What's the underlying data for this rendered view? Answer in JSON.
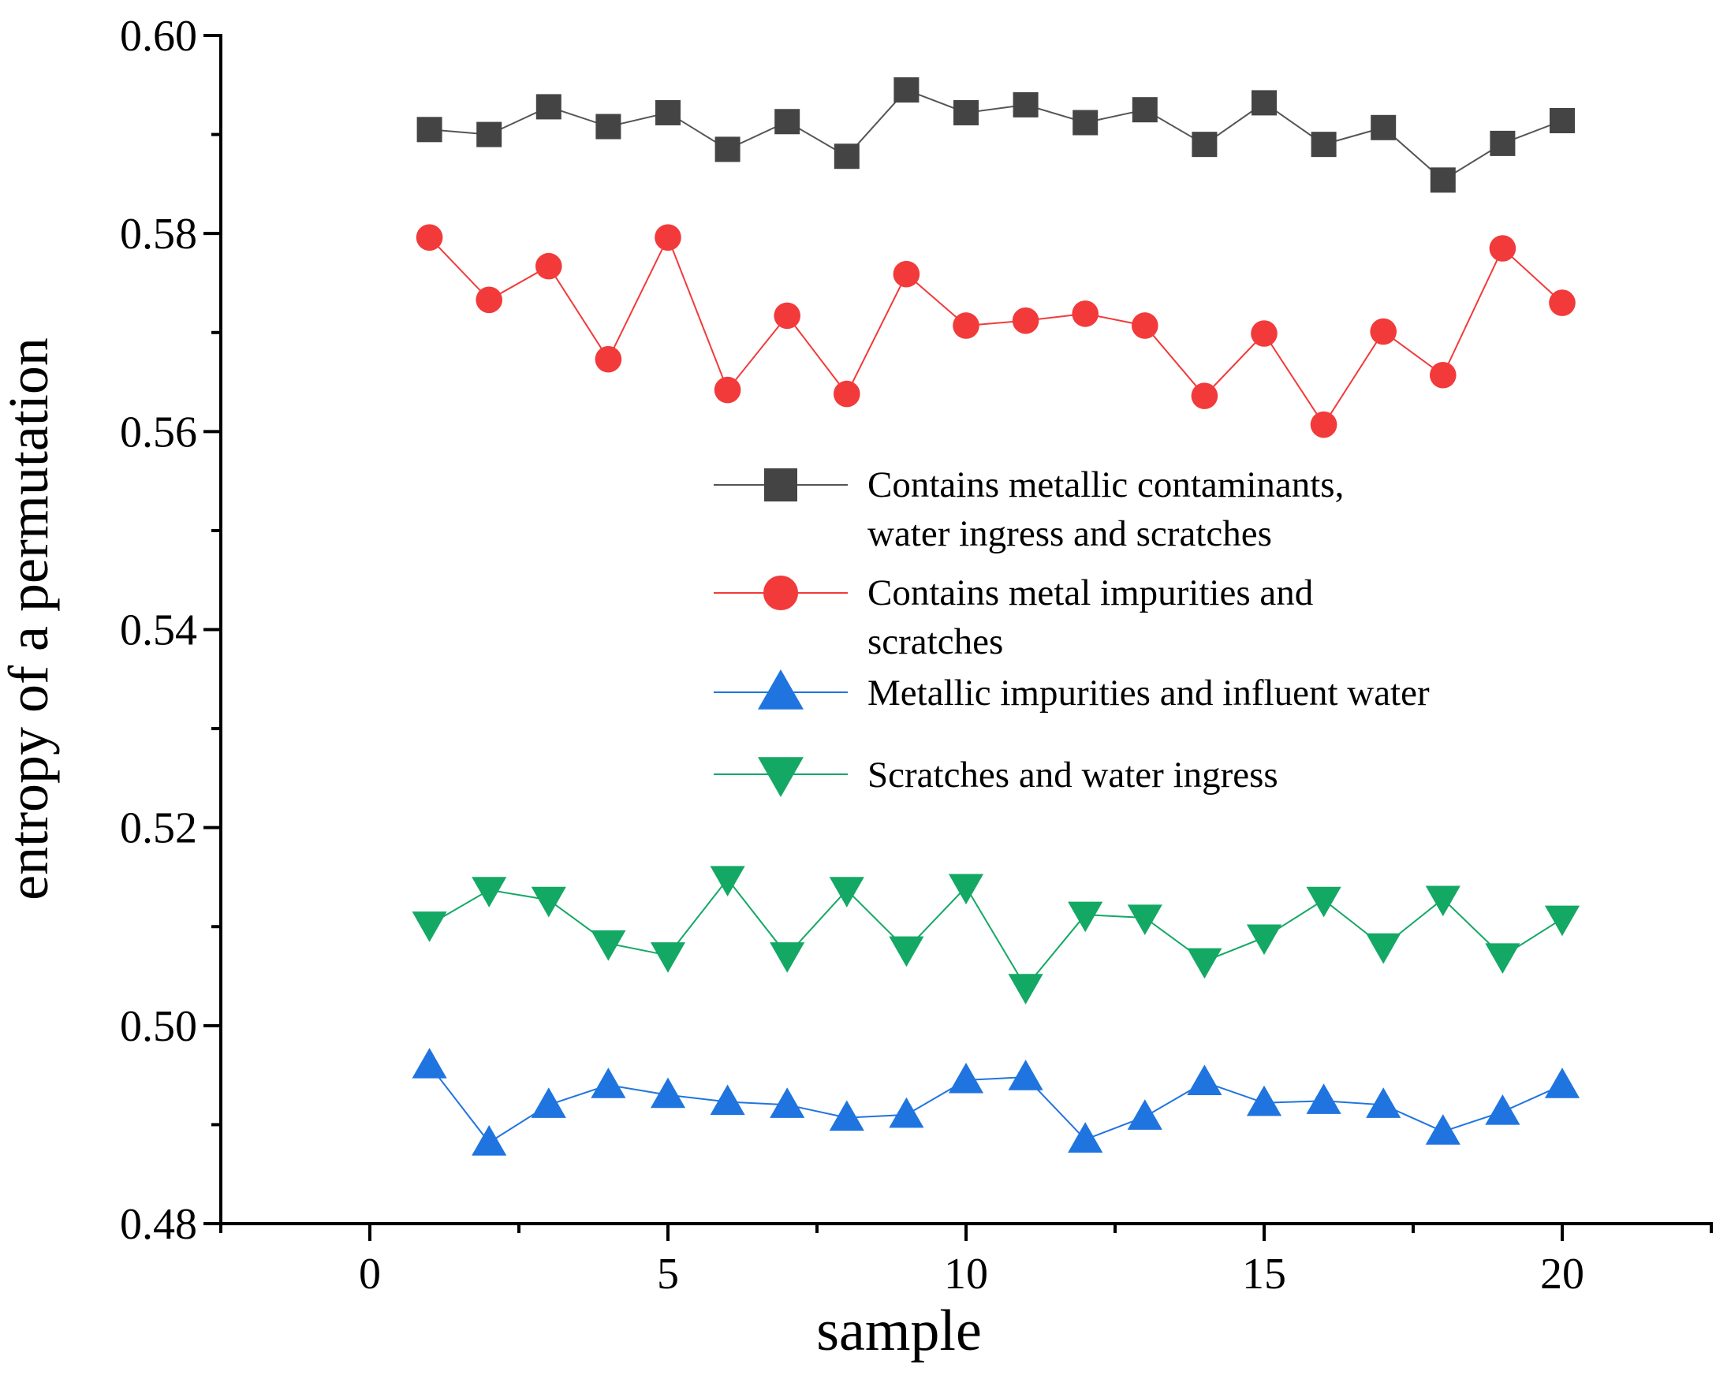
{
  "chart_data": {
    "type": "line",
    "title": "",
    "xlabel": "sample",
    "ylabel": "entropy of a permutation",
    "xlim": [
      -2.5,
      22.5
    ],
    "ylim": [
      0.48,
      0.6
    ],
    "xticks": [
      0,
      5,
      10,
      15,
      20
    ],
    "xtick_labels": [
      "0",
      "5",
      "10",
      "15",
      "20"
    ],
    "yticks": [
      0.48,
      0.5,
      0.52,
      0.54,
      0.56,
      0.58,
      0.6
    ],
    "ytick_labels": [
      "0.48",
      "0.50",
      "0.52",
      "0.54",
      "0.56",
      "0.58",
      "0.60"
    ],
    "grid": false,
    "legend_position": "center-right",
    "x": [
      1,
      2,
      3,
      4,
      5,
      6,
      7,
      8,
      9,
      10,
      11,
      12,
      13,
      14,
      15,
      16,
      17,
      18,
      19,
      20
    ],
    "series": [
      {
        "name": "Contains metallic contaminants, water ingress and scratches",
        "legend_lines": [
          "Contains metallic contaminants,",
          "water ingress and scratches"
        ],
        "color": "#444444",
        "line_color": "#555555",
        "marker": "square",
        "values": [
          0.5905,
          0.59,
          0.5928,
          0.5908,
          0.5922,
          0.5885,
          0.5913,
          0.5878,
          0.5945,
          0.5922,
          0.593,
          0.5912,
          0.5925,
          0.589,
          0.5932,
          0.589,
          0.5907,
          0.5854,
          0.5891,
          0.5914
        ]
      },
      {
        "name": "Contains metal impurities and scratches",
        "legend_lines": [
          "Contains metal impurities and",
          "scratches"
        ],
        "color": "#f23a3a",
        "line_color": "#f23a3a",
        "marker": "circle",
        "values": [
          0.5796,
          0.5733,
          0.5767,
          0.5673,
          0.5796,
          0.5642,
          0.5717,
          0.5638,
          0.5759,
          0.5707,
          0.5712,
          0.5719,
          0.5707,
          0.5636,
          0.5699,
          0.5607,
          0.5701,
          0.5657,
          0.5785,
          0.573
        ]
      },
      {
        "name": "Metallic impurities and influent water",
        "legend_lines": [
          "Metallic impurities and influent water"
        ],
        "color": "#1f74e0",
        "line_color": "#1f74e0",
        "marker": "triangle-up",
        "values": [
          0.496,
          0.4882,
          0.492,
          0.494,
          0.493,
          0.4923,
          0.492,
          0.4907,
          0.491,
          0.4945,
          0.4948,
          0.4885,
          0.4908,
          0.4943,
          0.4922,
          0.4924,
          0.492,
          0.4893,
          0.4913,
          0.494
        ]
      },
      {
        "name": "Scratches and water ingress",
        "legend_lines": [
          "Scratches and water ingress"
        ],
        "color": "#14a865",
        "line_color": "#14a865",
        "marker": "triangle-down",
        "values": [
          0.5102,
          0.5137,
          0.5127,
          0.5083,
          0.5071,
          0.5148,
          0.5071,
          0.5137,
          0.5077,
          0.514,
          0.5039,
          0.5112,
          0.5109,
          0.5065,
          0.5089,
          0.5127,
          0.508,
          0.5128,
          0.507,
          0.5108
        ]
      }
    ]
  }
}
